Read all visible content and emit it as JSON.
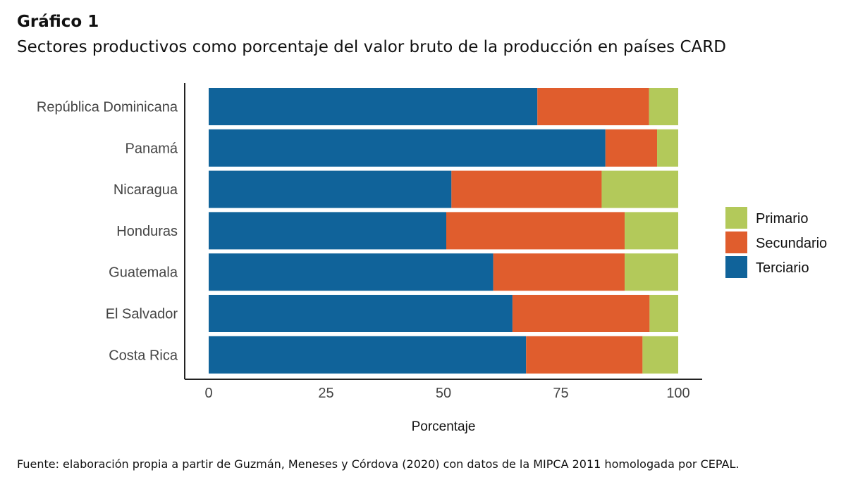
{
  "header": {
    "title": "Gráfico 1",
    "subtitle": "Sectores productivos como porcentaje del valor bruto de la producción en países CARD"
  },
  "footer": {
    "source": "Fuente: elaboración propia a partir de Guzmán, Meneses y Córdova (2020) con datos de la MIPCA 2011 homologada por CEPAL."
  },
  "chart_data": {
    "type": "bar",
    "orientation": "horizontal",
    "stacked": true,
    "categories": [
      "República Dominicana",
      "Panamá",
      "Nicaragua",
      "Honduras",
      "Guatemala",
      "El Salvador",
      "Costa Rica"
    ],
    "series": [
      {
        "name": "Terciario",
        "color": "#10639a",
        "values": [
          70,
          84.5,
          51.7,
          50.6,
          60.6,
          64.7,
          67.6
        ]
      },
      {
        "name": "Secundario",
        "color": "#e05d2d",
        "values": [
          23.8,
          11.0,
          32.0,
          38.0,
          28.0,
          29.2,
          24.8
        ]
      },
      {
        "name": "Primario",
        "color": "#b3c95a",
        "values": [
          6.2,
          4.5,
          16.3,
          11.4,
          11.4,
          6.1,
          7.6
        ]
      }
    ],
    "legend_order": [
      "Primario",
      "Secundario",
      "Terciario"
    ],
    "xlabel": "Porcentaje",
    "ylabel": "",
    "xlim": [
      0,
      100
    ],
    "xticks": [
      "0",
      "25",
      "50",
      "75",
      "100"
    ],
    "grid": false,
    "legend": "right"
  }
}
